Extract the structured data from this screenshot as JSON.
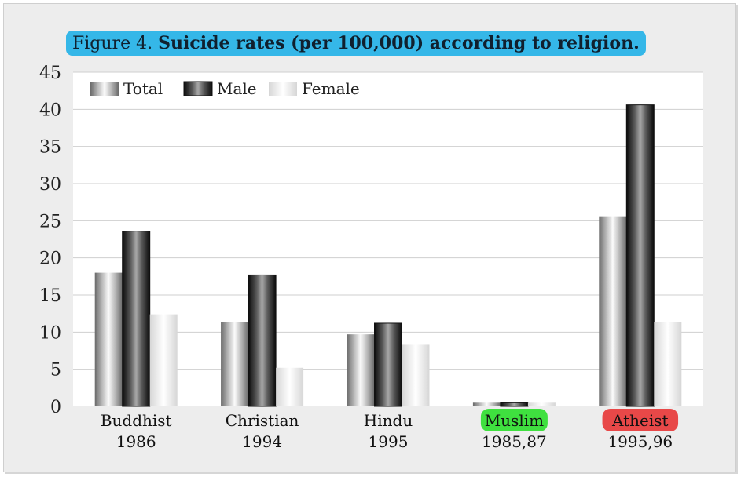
{
  "chart_data": {
    "type": "bar",
    "title_prefix": "Figure 4.",
    "title": "Suicide rates (per 100,000) according to religion.",
    "xlabel": "",
    "ylabel": "",
    "ylim": [
      0,
      45
    ],
    "yticks": [
      0,
      5,
      10,
      15,
      20,
      25,
      30,
      35,
      40,
      45
    ],
    "grid": true,
    "legend_position": "top-left",
    "categories": [
      {
        "name": "Buddhist",
        "year": "1986",
        "highlight": null
      },
      {
        "name": "Christian",
        "year": "1994",
        "highlight": null
      },
      {
        "name": "Hindu",
        "year": "1995",
        "highlight": null
      },
      {
        "name": "Muslim",
        "year": "1985,87",
        "highlight": "#3fe03f"
      },
      {
        "name": "Atheist",
        "year": "1995,96",
        "highlight": "#e84848"
      }
    ],
    "series": [
      {
        "name": "Total",
        "style": "total",
        "values": [
          18.0,
          11.4,
          9.7,
          0.5,
          25.6
        ]
      },
      {
        "name": "Male",
        "style": "male",
        "values": [
          23.6,
          17.7,
          11.2,
          0.5,
          40.6
        ]
      },
      {
        "name": "Female",
        "style": "female",
        "values": [
          12.4,
          5.2,
          8.3,
          0.5,
          11.4
        ]
      }
    ]
  }
}
